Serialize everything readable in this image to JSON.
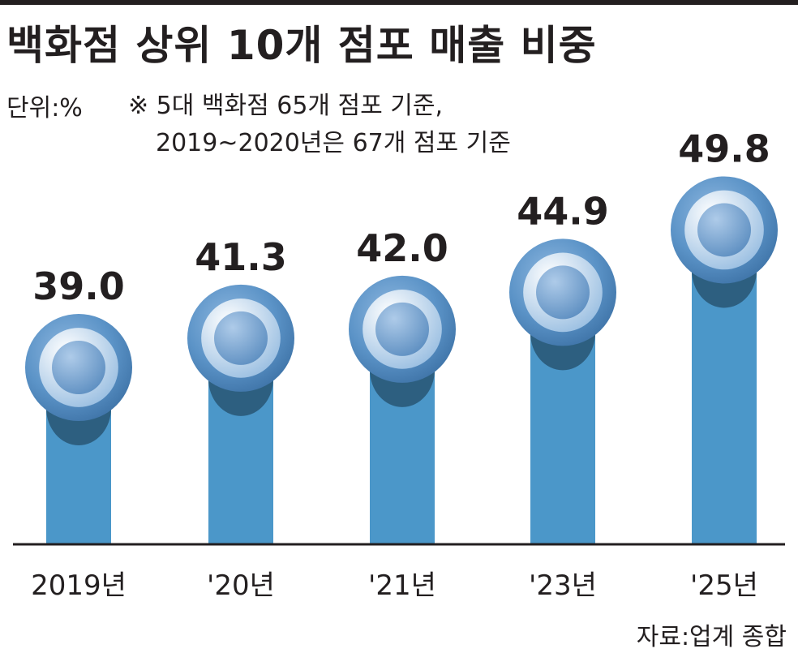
{
  "title": "백화점 상위 10개 점포 매출 비중",
  "unit": "단위:%",
  "note": {
    "line1": "※ 5대 백화점 65개 점포 기준,",
    "line2": "2019~2020년은 67개 점포 기준"
  },
  "source": "자료:업계 종합",
  "colors": {
    "bar": "#4b97c9",
    "bar_shade": "#2d5f80",
    "circle_outer": "#5590c4",
    "circle_inner": "#e3edf8",
    "text": "#231f20"
  },
  "chart_data": {
    "type": "bar",
    "title": "백화점 상위 10개 점포 매출 비중",
    "categories": [
      "2019년",
      "'20년",
      "'21년",
      "'23년",
      "'25년"
    ],
    "values": [
      39.0,
      41.3,
      42.0,
      44.9,
      49.8
    ],
    "value_labels": [
      "39.0",
      "41.3",
      "42.0",
      "44.9",
      "49.8"
    ],
    "unit": "%",
    "xlabel": "",
    "ylabel": "",
    "grid": false,
    "axis": "baseline only"
  }
}
